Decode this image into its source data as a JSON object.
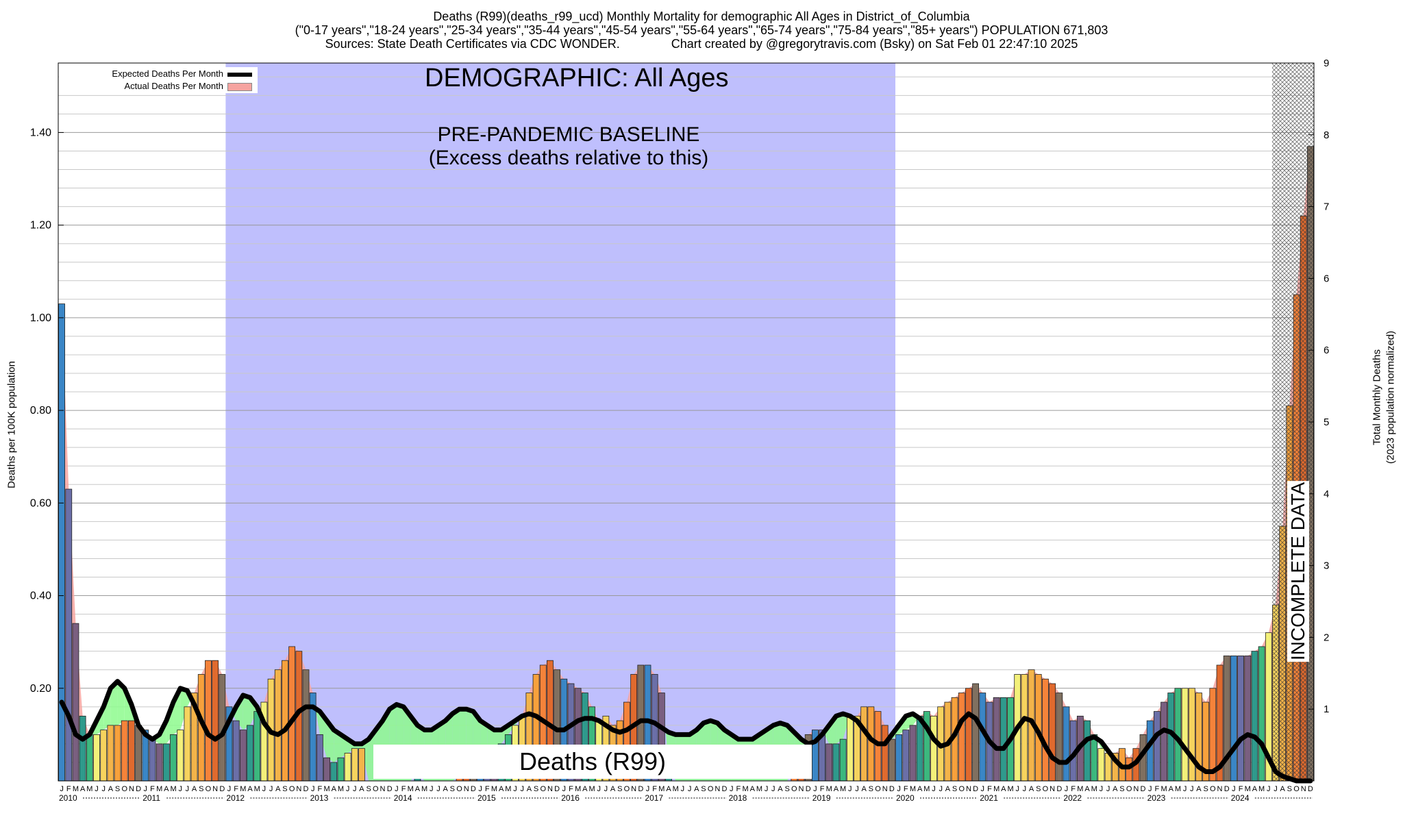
{
  "header": {
    "line1": "Deaths (R99)(deaths_r99_ucd) Monthly Mortality for demographic All Ages in District_of_Columbia",
    "line2": "(\"0-17 years\",\"18-24 years\",\"25-34 years\",\"35-44 years\",\"45-54 years\",\"55-64 years\",\"65-74 years\",\"75-84 years\",\"85+ years\") POPULATION 671,803",
    "line3": "Sources: State Death Certificates via CDC WONDER.               Chart created by @gregorytravis.com (Bsky) on Sat Feb 01 22:47:10 2025"
  },
  "annotations": {
    "demographic": "DEMOGRAPHIC: All Ages",
    "baseline_title": "PRE-PANDEMIC BASELINE",
    "baseline_sub": "(Excess deaths relative to this)",
    "cause": "Deaths (R99)",
    "incomplete": "INCOMPLETE DATA"
  },
  "legend": {
    "expected": "Expected Deaths Per Month",
    "actual": "Actual Deaths Per Month"
  },
  "colors": {
    "baseline_band": "#bfbffd",
    "excess_fill": "#f6a4a0",
    "deficit_fill": "#8dfa8d",
    "expected_line": "#000000",
    "month_palette": [
      "#3a86c6",
      "#6b6fa8",
      "#7a5f80",
      "#2f9a8c",
      "#3cb87e",
      "#f3f07a",
      "#f6d35e",
      "#f3b44a",
      "#f7a13c",
      "#f5833a",
      "#e06a2e",
      "#807060"
    ]
  },
  "chart_data": {
    "type": "bar",
    "ylabel": "Deaths per 100K population",
    "y2label_line1": "Total Monthly Deaths",
    "y2label_line2": "(2023 population normalized)",
    "ylim": [
      0,
      1.55
    ],
    "y2lim": [
      0,
      9
    ],
    "yticks": [
      "0.20",
      "0.40",
      "0.60",
      "0.80",
      "1.00",
      "1.20",
      "1.40"
    ],
    "y2ticks": [
      "1",
      "2",
      "3",
      "4",
      "5",
      "6",
      "6",
      "7",
      "8",
      "9"
    ],
    "grid": true,
    "legend_position": "top-left",
    "month_letters": [
      "J",
      "F",
      "M",
      "A",
      "M",
      "J",
      "J",
      "A",
      "S",
      "O",
      "N",
      "D"
    ],
    "years": [
      "2010",
      "2011",
      "2012",
      "2013",
      "2014",
      "2015",
      "2016",
      "2017",
      "2018",
      "2019",
      "2020",
      "2021",
      "2022",
      "2023",
      "2024"
    ],
    "baseline_period": [
      "2012-01",
      "2019-12"
    ],
    "incomplete_from": "2024-07",
    "series": [
      {
        "name": "Actual Deaths Per Month",
        "values": [
          1.03,
          0.63,
          0.34,
          0.14,
          0.1,
          0.1,
          0.11,
          0.12,
          0.12,
          0.13,
          0.13,
          0.12,
          0.11,
          0.09,
          0.08,
          0.08,
          0.1,
          0.11,
          0.16,
          0.19,
          0.23,
          0.26,
          0.26,
          0.23,
          0.16,
          0.13,
          0.11,
          0.12,
          0.15,
          0.17,
          0.22,
          0.24,
          0.26,
          0.29,
          0.28,
          0.24,
          0.19,
          0.1,
          0.05,
          0.04,
          0.05,
          0.06,
          0.07,
          0.07,
          0.0,
          0.0,
          0.0,
          0.0,
          0.0,
          0.0,
          0.0,
          0.02,
          0.0,
          0.0,
          0.0,
          0.0,
          0.0,
          0.01,
          0.02,
          0.03,
          0.04,
          0.05,
          0.07,
          0.08,
          0.1,
          0.12,
          0.14,
          0.19,
          0.23,
          0.25,
          0.26,
          0.24,
          0.22,
          0.21,
          0.2,
          0.19,
          0.16,
          0.13,
          0.14,
          0.12,
          0.13,
          0.17,
          0.23,
          0.25,
          0.25,
          0.23,
          0.19,
          0.04,
          0.0,
          0.0,
          0.0,
          0.0,
          0.0,
          0.0,
          0.0,
          0.0,
          0.0,
          0.0,
          0.0,
          0.0,
          0.0,
          0.0,
          0.0,
          0.0,
          0.0,
          0.03,
          0.04,
          0.1,
          0.11,
          0.11,
          0.08,
          0.08,
          0.09,
          0.14,
          0.14,
          0.16,
          0.16,
          0.15,
          0.12,
          0.09,
          0.1,
          0.11,
          0.12,
          0.14,
          0.15,
          0.14,
          0.16,
          0.17,
          0.18,
          0.19,
          0.2,
          0.21,
          0.19,
          0.17,
          0.18,
          0.18,
          0.18,
          0.23,
          0.23,
          0.24,
          0.23,
          0.22,
          0.21,
          0.19,
          0.16,
          0.13,
          0.14,
          0.13,
          0.1,
          0.07,
          0.06,
          0.06,
          0.07,
          0.05,
          0.07,
          0.1,
          0.13,
          0.15,
          0.17,
          0.19,
          0.2,
          0.2,
          0.2,
          0.19,
          0.17,
          0.2,
          0.25,
          0.27,
          0.27,
          0.27,
          0.27,
          0.28,
          0.29,
          0.32,
          0.38,
          0.55,
          0.81,
          1.05,
          1.22,
          1.37
        ]
      },
      {
        "name": "Expected Deaths Per Month",
        "values": [
          0.17,
          0.14,
          0.1,
          0.09,
          0.1,
          0.13,
          0.16,
          0.2,
          0.215,
          0.2,
          0.165,
          0.12,
          0.1,
          0.09,
          0.1,
          0.13,
          0.17,
          0.2,
          0.195,
          0.165,
          0.13,
          0.1,
          0.09,
          0.1,
          0.13,
          0.16,
          0.185,
          0.18,
          0.16,
          0.125,
          0.105,
          0.1,
          0.11,
          0.13,
          0.15,
          0.16,
          0.16,
          0.15,
          0.13,
          0.11,
          0.1,
          0.09,
          0.08,
          0.08,
          0.09,
          0.11,
          0.13,
          0.155,
          0.165,
          0.16,
          0.14,
          0.12,
          0.11,
          0.11,
          0.12,
          0.13,
          0.145,
          0.155,
          0.155,
          0.15,
          0.13,
          0.12,
          0.11,
          0.11,
          0.12,
          0.13,
          0.14,
          0.145,
          0.14,
          0.13,
          0.12,
          0.11,
          0.11,
          0.12,
          0.13,
          0.135,
          0.135,
          0.13,
          0.12,
          0.11,
          0.105,
          0.11,
          0.12,
          0.13,
          0.13,
          0.125,
          0.115,
          0.105,
          0.1,
          0.1,
          0.1,
          0.11,
          0.125,
          0.13,
          0.125,
          0.11,
          0.1,
          0.09,
          0.09,
          0.09,
          0.1,
          0.11,
          0.12,
          0.125,
          0.12,
          0.105,
          0.09,
          0.08,
          0.085,
          0.1,
          0.12,
          0.14,
          0.145,
          0.14,
          0.13,
          0.11,
          0.09,
          0.08,
          0.08,
          0.1,
          0.12,
          0.14,
          0.145,
          0.135,
          0.115,
          0.09,
          0.075,
          0.08,
          0.1,
          0.13,
          0.145,
          0.135,
          0.11,
          0.085,
          0.07,
          0.07,
          0.09,
          0.115,
          0.135,
          0.13,
          0.105,
          0.075,
          0.05,
          0.04,
          0.04,
          0.055,
          0.075,
          0.09,
          0.095,
          0.085,
          0.065,
          0.045,
          0.03,
          0.03,
          0.04,
          0.06,
          0.08,
          0.1,
          0.11,
          0.105,
          0.09,
          0.07,
          0.05,
          0.03,
          0.02,
          0.02,
          0.03,
          0.05,
          0.07,
          0.09,
          0.1,
          0.095,
          0.08,
          0.05,
          0.02,
          0.01,
          0.005,
          0.0,
          0.0,
          0.0
        ]
      }
    ]
  }
}
